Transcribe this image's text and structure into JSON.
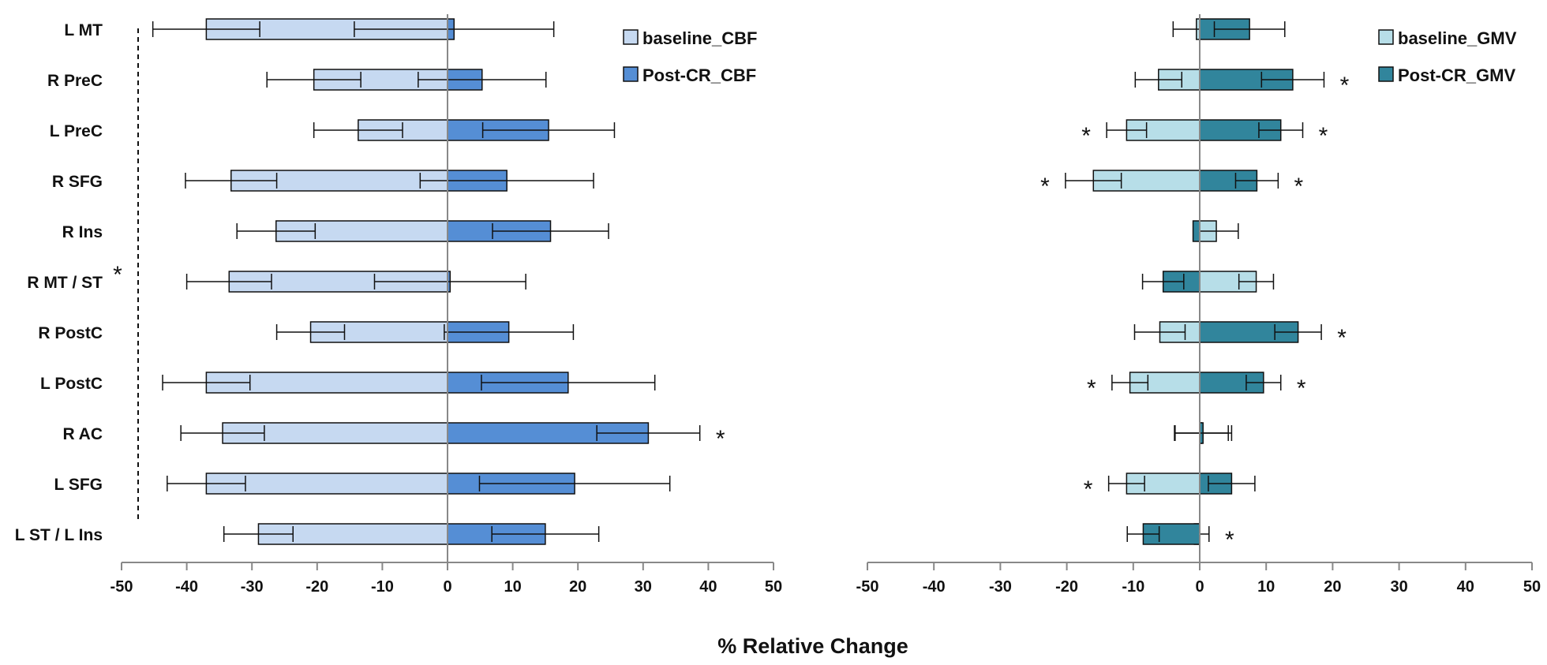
{
  "chart_data": {
    "type": "bar",
    "orientation": "horizontal",
    "xlabel": "% Relative Change",
    "categories": [
      "L MT",
      "R PreC",
      "L PreC",
      "R SFG",
      "R Ins",
      "R MT / ST",
      "R PostC",
      "L PostC",
      "R AC",
      "L SFG",
      "L ST / L Ins"
    ],
    "bracket_star": "*",
    "panels": [
      {
        "id": "cbf",
        "xlim": [
          -50,
          50
        ],
        "ticks": [
          "-50",
          "-40",
          "-30",
          "-20",
          "-10",
          "0",
          "10",
          "20",
          "30",
          "40",
          "50"
        ],
        "colors": {
          "baseline": "#c6d9f1",
          "post": "#558ed5"
        },
        "series": [
          {
            "name": "baseline_CBF",
            "values": [
              -37,
              -20.5,
              -13.7,
              -33.2,
              -26.3,
              -33.5,
              -21,
              -37,
              -34.5,
              -37,
              -29
            ],
            "err": [
              8.2,
              7.2,
              6.8,
              7,
              6,
              6.5,
              5.2,
              6.7,
              6.4,
              6,
              5.3
            ]
          },
          {
            "name": "Post-CR_CBF",
            "values": [
              1,
              5.3,
              15.5,
              9.1,
              15.8,
              0.4,
              9.4,
              18.5,
              30.8,
              19.5,
              15
            ],
            "err": [
              15.3,
              9.8,
              10.1,
              13.3,
              8.9,
              11.6,
              9.9,
              13.3,
              7.9,
              14.6,
              8.2
            ]
          }
        ],
        "significant": [
          "",
          "",
          "",
          "",
          "",
          "",
          "",
          "",
          "*",
          "",
          ""
        ]
      },
      {
        "id": "gmv",
        "xlim": [
          -50,
          50
        ],
        "ticks": [
          "-50",
          "-40",
          "-30",
          "-20",
          "-10",
          "0",
          "10",
          "20",
          "30",
          "40",
          "50"
        ],
        "colors": {
          "baseline": "#b7dee8",
          "post": "#31859c"
        },
        "series": [
          {
            "name": "baseline_GMV",
            "values": [
              -0.5,
              -6.2,
              -11,
              -16,
              2.5,
              8.5,
              -6,
              -10.5,
              0.3,
              -11,
              -0.8
            ],
            "err": [
              3.5,
              3.5,
              3,
              4.2,
              3.3,
              2.6,
              3.8,
              2.7,
              4,
              2.7,
              2.2
            ]
          },
          {
            "name": "Post-CR_GMV",
            "values": [
              7.5,
              14,
              12.2,
              8.6,
              -1,
              -5.5,
              14.8,
              9.6,
              0.5,
              4.8,
              -8.5
            ],
            "err": [
              5.3,
              4.7,
              3.3,
              3.2,
              0,
              3.1,
              3.5,
              2.6,
              4.3,
              3.5,
              2.4
            ]
          }
        ],
        "significant_left": [
          "",
          "",
          "*",
          "*",
          "",
          "",
          "",
          "*",
          "",
          "*",
          ""
        ],
        "significant_right": [
          "",
          "*",
          "*",
          "*",
          "",
          "",
          "*",
          "*",
          "",
          "",
          "*"
        ]
      }
    ]
  }
}
